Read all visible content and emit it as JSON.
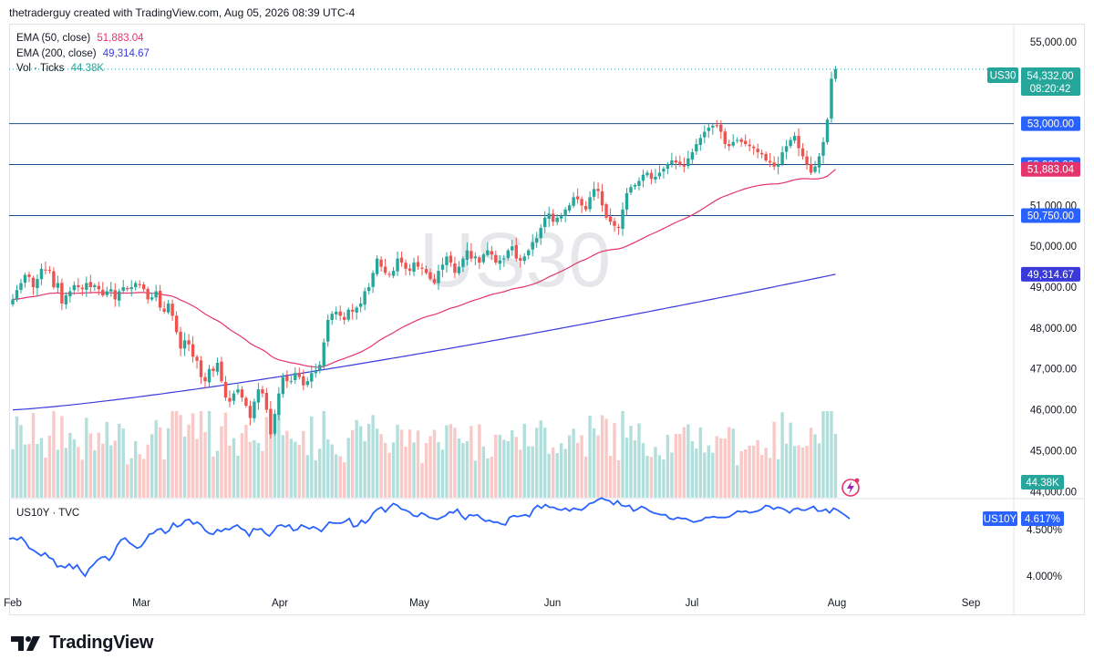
{
  "header": {
    "text": "thetraderguy created with TradingView.com, Aug 05, 2026 08:39 UTC-4"
  },
  "legend": {
    "ema50_label": "EMA (50, close)",
    "ema50_value": "51,883.04",
    "ema200_label": "EMA (200, close)",
    "ema200_value": "49,314.67",
    "vol_label": "Vol · Ticks",
    "vol_value": "44.38K"
  },
  "watermark": "US30",
  "sub_pane": {
    "title": "US10Y · TVC"
  },
  "colors": {
    "up": "#26a69a",
    "down": "#ef5350",
    "up_vol": "#b2dfdb",
    "down_vol": "#f8c9c7",
    "ema50": "#e5336d",
    "ema200": "#3a3adb",
    "hline": "#1e4d8c",
    "us10y": "#2962ff",
    "label_blue": "#2962ff"
  },
  "footer": {
    "brand": "TradingView"
  },
  "chart_data": {
    "type": "candlestick",
    "symbol": "US30",
    "x_axis": [
      "Feb",
      "Mar",
      "Apr",
      "May",
      "Jun",
      "Jul",
      "Aug",
      "Sep"
    ],
    "y_axis_ticks": [
      "55,000.00",
      "51,000.00",
      "50,000.00",
      "49,000.00",
      "48,000.00",
      "47,000.00",
      "46,000.00",
      "45,000.00",
      "44,000.00"
    ],
    "ylim": [
      43850,
      55400
    ],
    "price_labels": [
      {
        "symbol": "US30",
        "value": "54,332.00",
        "countdown": "08:20:42",
        "price": 54332
      },
      {
        "value": "53,000.00",
        "price": 53000,
        "kind": "hline"
      },
      {
        "value": "52,000.00",
        "price": 52000,
        "kind": "hline"
      },
      {
        "value": "51,883.04",
        "price": 51883.04,
        "kind": "ema50"
      },
      {
        "value": "50,750.00",
        "price": 50750,
        "kind": "hline"
      },
      {
        "value": "49,314.67",
        "price": 49314.67,
        "kind": "ema200"
      },
      {
        "value": "44.38K",
        "price": 44050,
        "kind": "volume"
      }
    ],
    "horizontal_lines": [
      53000,
      52000,
      50750
    ],
    "closes": [
      48700,
      48930,
      49100,
      49300,
      49250,
      49000,
      49200,
      49450,
      49420,
      49400,
      49000,
      49100,
      48600,
      48800,
      48900,
      49050,
      49000,
      48950,
      49100,
      49000,
      49050,
      48950,
      48800,
      48900,
      48950,
      48700,
      48900,
      49000,
      48950,
      49000,
      49100,
      49050,
      48950,
      48700,
      48750,
      48900,
      48500,
      48400,
      48600,
      48300,
      47900,
      47500,
      47700,
      47600,
      47300,
      47200,
      46800,
      46700,
      47000,
      46950,
      47150,
      46700,
      46300,
      46200,
      46400,
      46500,
      46300,
      46100,
      45800,
      46200,
      46500,
      46400,
      46000,
      45400,
      45900,
      46400,
      46800,
      46700,
      46700,
      46900,
      46800,
      46600,
      46700,
      46900,
      46950,
      47100,
      47650,
      48200,
      48350,
      48400,
      48300,
      48200,
      48450,
      48400,
      48500,
      48600,
      48900,
      49000,
      49350,
      49700,
      49500,
      49350,
      49300,
      49400,
      49700,
      49600,
      49450,
      49400,
      49600,
      49500,
      49450,
      49350,
      49200,
      49100,
      49400,
      49550,
      49750,
      49600,
      49350,
      49500,
      49700,
      49900,
      49700,
      49750,
      49600,
      49800,
      49900,
      49800,
      49600,
      49650,
      49700,
      49900,
      50000,
      49700,
      49650,
      49750,
      49900,
      50100,
      50200,
      50450,
      50700,
      50800,
      50600,
      50700,
      50750,
      50900,
      51000,
      51200,
      51150,
      51000,
      50900,
      51200,
      51400,
      51350,
      51000,
      50700,
      50600,
      50500,
      50450,
      50900,
      51300,
      51450,
      51500,
      51600,
      51750,
      51800,
      51650,
      51700,
      51800,
      51900,
      52000,
      52100,
      52050,
      52000,
      51950,
      52150,
      52300,
      52500,
      52650,
      52800,
      52900,
      52950,
      52950,
      52800,
      52500,
      52450,
      52550,
      52600,
      52550,
      52500,
      52450,
      52400,
      52300,
      52250,
      52100,
      52050,
      51950,
      52000,
      52300,
      52450,
      52600,
      52700,
      52400,
      52200,
      52000,
      51800,
      51950,
      52200,
      52550,
      53100,
      54100,
      54332
    ],
    "ema50_last": 51883.04,
    "ema200_last": 49314.67,
    "volume_last": "44.38K",
    "us10y": {
      "symbol": "US10Y",
      "value": "4.617%",
      "ticks": [
        "4.500%",
        "4.000%"
      ],
      "points": [
        4.4,
        4.41,
        4.39,
        4.42,
        4.37,
        4.3,
        4.28,
        4.25,
        4.22,
        4.25,
        4.2,
        4.18,
        4.1,
        4.11,
        4.09,
        4.13,
        4.08,
        4.12,
        4.05,
        4.0,
        4.08,
        4.12,
        4.17,
        4.2,
        4.21,
        4.17,
        4.23,
        4.33,
        4.39,
        4.41,
        4.36,
        4.33,
        4.3,
        4.32,
        4.38,
        4.45,
        4.46,
        4.5,
        4.51,
        4.46,
        4.49,
        4.57,
        4.53,
        4.55,
        4.6,
        4.61,
        4.56,
        4.58,
        4.55,
        4.49,
        4.46,
        4.45,
        4.5,
        4.48,
        4.51,
        4.5,
        4.53,
        4.55,
        4.51,
        4.49,
        4.43,
        4.51,
        4.5,
        4.51,
        4.46,
        4.43,
        4.48,
        4.54,
        4.55,
        4.53,
        4.55,
        4.49,
        4.5,
        4.55,
        4.53,
        4.51,
        4.53,
        4.51,
        4.48,
        4.53,
        4.58,
        4.57,
        4.57,
        4.57,
        4.59,
        4.62,
        4.53,
        4.54,
        4.6,
        4.57,
        4.61,
        4.68,
        4.72,
        4.74,
        4.69,
        4.74,
        4.78,
        4.76,
        4.72,
        4.71,
        4.69,
        4.65,
        4.64,
        4.68,
        4.66,
        4.63,
        4.62,
        4.61,
        4.63,
        4.65,
        4.69,
        4.68,
        4.72,
        4.65,
        4.61,
        4.66,
        4.65,
        4.66,
        4.62,
        4.59,
        4.6,
        4.58,
        4.58,
        4.56,
        4.55,
        4.63,
        4.65,
        4.64,
        4.65,
        4.66,
        4.64,
        4.72,
        4.76,
        4.73,
        4.77,
        4.74,
        4.74,
        4.72,
        4.71,
        4.73,
        4.7,
        4.73,
        4.72,
        4.71,
        4.74,
        4.78,
        4.79,
        4.82,
        4.84,
        4.82,
        4.81,
        4.77,
        4.81,
        4.76,
        4.75,
        4.76,
        4.7,
        4.72,
        4.75,
        4.73,
        4.7,
        4.68,
        4.67,
        4.66,
        4.66,
        4.62,
        4.61,
        4.63,
        4.62,
        4.62,
        4.6,
        4.58,
        4.59,
        4.6,
        4.63,
        4.63,
        4.64,
        4.63,
        4.63,
        4.63,
        4.64,
        4.67,
        4.7,
        4.69,
        4.7,
        4.68,
        4.69,
        4.7,
        4.72,
        4.76,
        4.75,
        4.72,
        4.74,
        4.73,
        4.71,
        4.68,
        4.72,
        4.73,
        4.71,
        4.71,
        4.73,
        4.75,
        4.7,
        4.7,
        4.72,
        4.68,
        4.73,
        4.71,
        4.68,
        4.65,
        4.617
      ]
    }
  }
}
